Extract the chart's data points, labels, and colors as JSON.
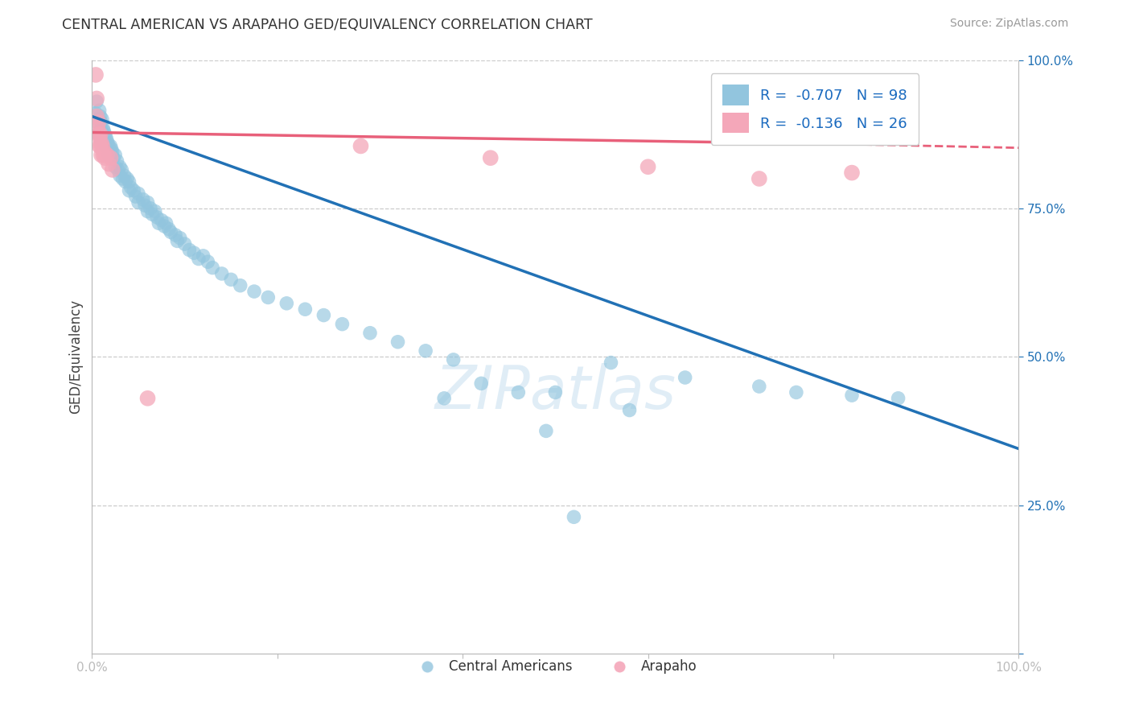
{
  "title": "CENTRAL AMERICAN VS ARAPAHO GED/EQUIVALENCY CORRELATION CHART",
  "source": "Source: ZipAtlas.com",
  "ylabel": "GED/Equivalency",
  "xlim": [
    0,
    1
  ],
  "ylim": [
    0,
    1
  ],
  "ytick_positions": [
    0.0,
    0.25,
    0.5,
    0.75,
    1.0
  ],
  "yticklabels_right": [
    "",
    "25.0%",
    "50.0%",
    "75.0%",
    "100.0%"
  ],
  "blue_color": "#92c5de",
  "pink_color": "#f4a7b9",
  "blue_line_color": "#2171b5",
  "pink_line_color": "#e8607a",
  "R_blue": -0.707,
  "N_blue": 98,
  "R_pink": -0.136,
  "N_pink": 26,
  "legend_R_color": "#1a6abf",
  "watermark": "ZIPatlas",
  "background_color": "#ffffff",
  "blue_points": [
    [
      0.004,
      0.91
    ],
    [
      0.005,
      0.93
    ],
    [
      0.006,
      0.895
    ],
    [
      0.007,
      0.9
    ],
    [
      0.007,
      0.875
    ],
    [
      0.008,
      0.915
    ],
    [
      0.008,
      0.88
    ],
    [
      0.009,
      0.905
    ],
    [
      0.009,
      0.87
    ],
    [
      0.01,
      0.895
    ],
    [
      0.01,
      0.885
    ],
    [
      0.01,
      0.865
    ],
    [
      0.011,
      0.9
    ],
    [
      0.011,
      0.875
    ],
    [
      0.012,
      0.885
    ],
    [
      0.012,
      0.87
    ],
    [
      0.013,
      0.88
    ],
    [
      0.013,
      0.865
    ],
    [
      0.014,
      0.875
    ],
    [
      0.015,
      0.87
    ],
    [
      0.015,
      0.855
    ],
    [
      0.016,
      0.865
    ],
    [
      0.017,
      0.86
    ],
    [
      0.018,
      0.855
    ],
    [
      0.018,
      0.84
    ],
    [
      0.02,
      0.855
    ],
    [
      0.02,
      0.84
    ],
    [
      0.021,
      0.85
    ],
    [
      0.022,
      0.845
    ],
    [
      0.023,
      0.835
    ],
    [
      0.025,
      0.84
    ],
    [
      0.025,
      0.82
    ],
    [
      0.027,
      0.83
    ],
    [
      0.028,
      0.815
    ],
    [
      0.03,
      0.82
    ],
    [
      0.03,
      0.805
    ],
    [
      0.032,
      0.815
    ],
    [
      0.033,
      0.8
    ],
    [
      0.035,
      0.805
    ],
    [
      0.036,
      0.795
    ],
    [
      0.038,
      0.8
    ],
    [
      0.04,
      0.795
    ],
    [
      0.04,
      0.78
    ],
    [
      0.042,
      0.785
    ],
    [
      0.045,
      0.78
    ],
    [
      0.047,
      0.77
    ],
    [
      0.05,
      0.775
    ],
    [
      0.05,
      0.76
    ],
    [
      0.055,
      0.765
    ],
    [
      0.057,
      0.755
    ],
    [
      0.06,
      0.76
    ],
    [
      0.06,
      0.745
    ],
    [
      0.063,
      0.75
    ],
    [
      0.065,
      0.74
    ],
    [
      0.068,
      0.745
    ],
    [
      0.07,
      0.735
    ],
    [
      0.072,
      0.725
    ],
    [
      0.075,
      0.73
    ],
    [
      0.078,
      0.72
    ],
    [
      0.08,
      0.725
    ],
    [
      0.083,
      0.715
    ],
    [
      0.085,
      0.71
    ],
    [
      0.09,
      0.705
    ],
    [
      0.092,
      0.695
    ],
    [
      0.095,
      0.7
    ],
    [
      0.1,
      0.69
    ],
    [
      0.105,
      0.68
    ],
    [
      0.11,
      0.675
    ],
    [
      0.115,
      0.665
    ],
    [
      0.12,
      0.67
    ],
    [
      0.125,
      0.66
    ],
    [
      0.13,
      0.65
    ],
    [
      0.14,
      0.64
    ],
    [
      0.15,
      0.63
    ],
    [
      0.16,
      0.62
    ],
    [
      0.175,
      0.61
    ],
    [
      0.19,
      0.6
    ],
    [
      0.21,
      0.59
    ],
    [
      0.23,
      0.58
    ],
    [
      0.25,
      0.57
    ],
    [
      0.27,
      0.555
    ],
    [
      0.3,
      0.54
    ],
    [
      0.33,
      0.525
    ],
    [
      0.36,
      0.51
    ],
    [
      0.39,
      0.495
    ],
    [
      0.38,
      0.43
    ],
    [
      0.42,
      0.455
    ],
    [
      0.46,
      0.44
    ],
    [
      0.5,
      0.44
    ],
    [
      0.49,
      0.375
    ],
    [
      0.52,
      0.23
    ],
    [
      0.56,
      0.49
    ],
    [
      0.58,
      0.41
    ],
    [
      0.64,
      0.465
    ],
    [
      0.72,
      0.45
    ],
    [
      0.76,
      0.44
    ],
    [
      0.82,
      0.435
    ],
    [
      0.87,
      0.43
    ]
  ],
  "pink_points": [
    [
      0.004,
      0.975
    ],
    [
      0.005,
      0.935
    ],
    [
      0.005,
      0.905
    ],
    [
      0.006,
      0.885
    ],
    [
      0.007,
      0.895
    ],
    [
      0.007,
      0.875
    ],
    [
      0.008,
      0.87
    ],
    [
      0.008,
      0.855
    ],
    [
      0.009,
      0.875
    ],
    [
      0.009,
      0.855
    ],
    [
      0.01,
      0.86
    ],
    [
      0.01,
      0.84
    ],
    [
      0.011,
      0.855
    ],
    [
      0.012,
      0.84
    ],
    [
      0.013,
      0.845
    ],
    [
      0.014,
      0.835
    ],
    [
      0.016,
      0.84
    ],
    [
      0.018,
      0.825
    ],
    [
      0.02,
      0.835
    ],
    [
      0.022,
      0.815
    ],
    [
      0.06,
      0.43
    ],
    [
      0.29,
      0.855
    ],
    [
      0.43,
      0.835
    ],
    [
      0.6,
      0.82
    ],
    [
      0.72,
      0.8
    ],
    [
      0.82,
      0.81
    ]
  ]
}
